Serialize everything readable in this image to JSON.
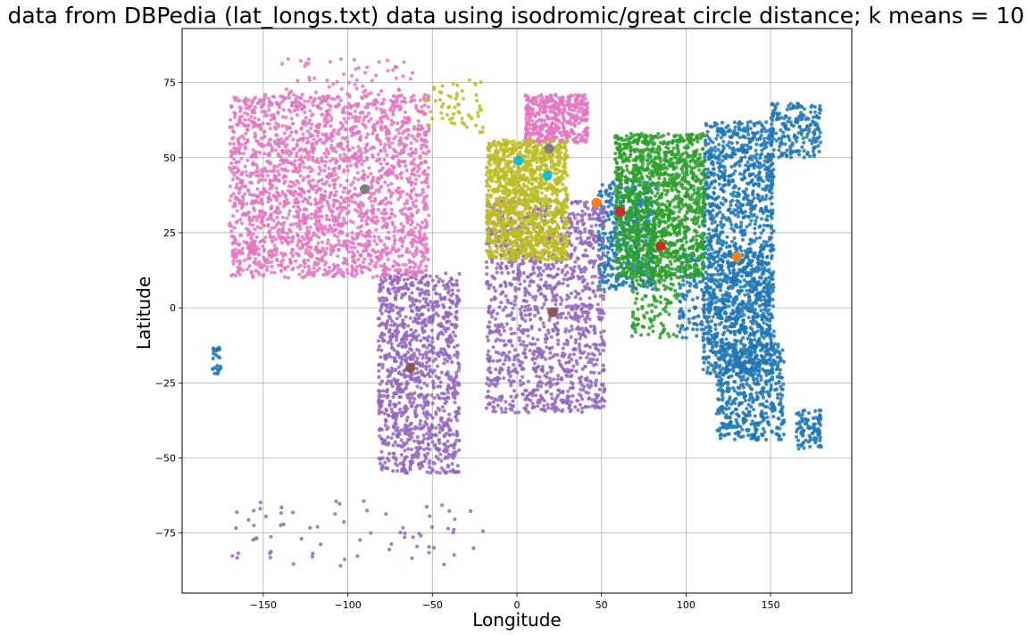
{
  "chart_data": {
    "type": "scatter",
    "title": "data from DBPedia (lat_longs.txt) data using isodromic/great circle distance; k means = 10",
    "xlabel": "Longitude",
    "ylabel": "Latitude",
    "xlim": [
      -198,
      198
    ],
    "ylim": [
      -95,
      93
    ],
    "xticks": [
      -150,
      -100,
      -50,
      0,
      50,
      100,
      150
    ],
    "yticks": [
      75,
      50,
      25,
      0,
      -25,
      -50,
      -75
    ],
    "xtick_labels": [
      "−150",
      "−100",
      "−50",
      "0",
      "50",
      "100",
      "150"
    ],
    "ytick_labels": [
      "75",
      "50",
      "25",
      "0",
      "−25",
      "−50",
      "−75"
    ],
    "grid": true,
    "series": [
      {
        "color": "#1f77b4",
        "regions": [
          {
            "x": [
              110,
              152
            ],
            "y": [
              -22,
              62
            ],
            "n": 1400
          },
          {
            "x": [
              118,
              158
            ],
            "y": [
              -44,
              -12
            ],
            "n": 500
          },
          {
            "x": [
              48,
              82
            ],
            "y": [
              6,
              42
            ],
            "n": 420
          },
          {
            "x": [
              150,
              180
            ],
            "y": [
              50,
              68
            ],
            "n": 200
          },
          {
            "x": [
              96,
              150
            ],
            "y": [
              -10,
              18
            ],
            "n": 350
          },
          {
            "x": [
              165,
              180
            ],
            "y": [
              -47,
              -34
            ],
            "n": 90
          },
          {
            "x": [
              -180,
              -175
            ],
            "y": [
              -22,
              -13
            ],
            "n": 25
          }
        ]
      },
      {
        "color": "#ff7f0e",
        "regions": []
      },
      {
        "color": "#2ca02c",
        "regions": [
          {
            "x": [
              58,
              111
            ],
            "y": [
              10,
              58
            ],
            "n": 1500
          },
          {
            "x": [
              68,
              96
            ],
            "y": [
              -10,
              12
            ],
            "n": 120
          }
        ]
      },
      {
        "color": "#d62728",
        "regions": []
      },
      {
        "color": "#9467bd",
        "regions": [
          {
            "x": [
              -82,
              -34
            ],
            "y": [
              -55,
              12
            ],
            "n": 1100
          },
          {
            "x": [
              -18,
              52
            ],
            "y": [
              -35,
              36
            ],
            "n": 1300
          },
          {
            "x": [
              -170,
              -20
            ],
            "y": [
              -86,
              -64
            ],
            "n": 70
          }
        ]
      },
      {
        "color": "#8c564b",
        "regions": []
      },
      {
        "color": "#e377c2",
        "regions": [
          {
            "x": [
              -170,
              -52
            ],
            "y": [
              10,
              71
            ],
            "n": 2300
          },
          {
            "x": [
              5,
              42
            ],
            "y": [
              55,
              71
            ],
            "n": 450
          },
          {
            "x": [
              -140,
              -60
            ],
            "y": [
              70,
              83
            ],
            "n": 60
          },
          {
            "x": [
              -160,
              -154
            ],
            "y": [
              18,
              22
            ],
            "n": 25
          }
        ]
      },
      {
        "color": "#7f7f7f",
        "regions": []
      },
      {
        "color": "#bcbd22",
        "regions": [
          {
            "x": [
              -18,
              30
            ],
            "y": [
              16,
              56
            ],
            "n": 1300
          },
          {
            "x": [
              -55,
              -20
            ],
            "y": [
              58,
              76
            ],
            "n": 60
          }
        ]
      },
      {
        "color": "#17becf",
        "regions": []
      }
    ],
    "centroids": [
      {
        "x": 130,
        "y": 17,
        "color": "#ff7f0e"
      },
      {
        "x": 47,
        "y": 35,
        "color": "#ff7f0e"
      },
      {
        "x": 61,
        "y": 32,
        "color": "#d62728"
      },
      {
        "x": 85,
        "y": 20.5,
        "color": "#d62728"
      },
      {
        "x": 21,
        "y": -1.5,
        "color": "#8c564b"
      },
      {
        "x": -63,
        "y": -20,
        "color": "#8c564b"
      },
      {
        "x": -90,
        "y": 39.5,
        "color": "#7f7f7f"
      },
      {
        "x": 19,
        "y": 53,
        "color": "#7f7f7f"
      },
      {
        "x": 1,
        "y": 49,
        "color": "#17becf"
      },
      {
        "x": 18,
        "y": 44,
        "color": "#17becf"
      }
    ]
  }
}
